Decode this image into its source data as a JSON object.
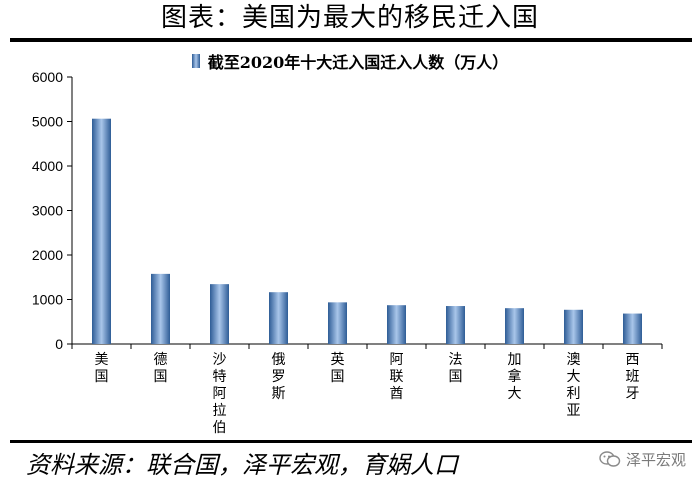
{
  "title": "图表：美国为最大的移民迁入国",
  "source": "资料来源：联合国，泽平宏观，育娲人口",
  "watermark": "泽平宏观",
  "watermark_icon": "wechat-icon",
  "colors": {
    "bar_dark": "#2e5c96",
    "bar_light": "#a9c6ea",
    "axis": "#000000"
  },
  "chart_data": {
    "type": "bar",
    "title": "",
    "xlabel": "",
    "ylabel": "",
    "ylim": [
      0,
      6000
    ],
    "yticks": [
      0,
      1000,
      2000,
      3000,
      4000,
      5000,
      6000
    ],
    "legend": "top-center",
    "grid": false,
    "categories": [
      "美国",
      "德国",
      "沙特阿拉伯",
      "俄罗斯",
      "英国",
      "阿联酋",
      "法国",
      "加拿大",
      "澳大利亚",
      "西班牙"
    ],
    "series": [
      {
        "name": "截至2020年十大迁入国迁入人数（万人）",
        "values": [
          5063,
          1576,
          1345,
          1164,
          936,
          872,
          853,
          805,
          769,
          684
        ]
      }
    ]
  }
}
